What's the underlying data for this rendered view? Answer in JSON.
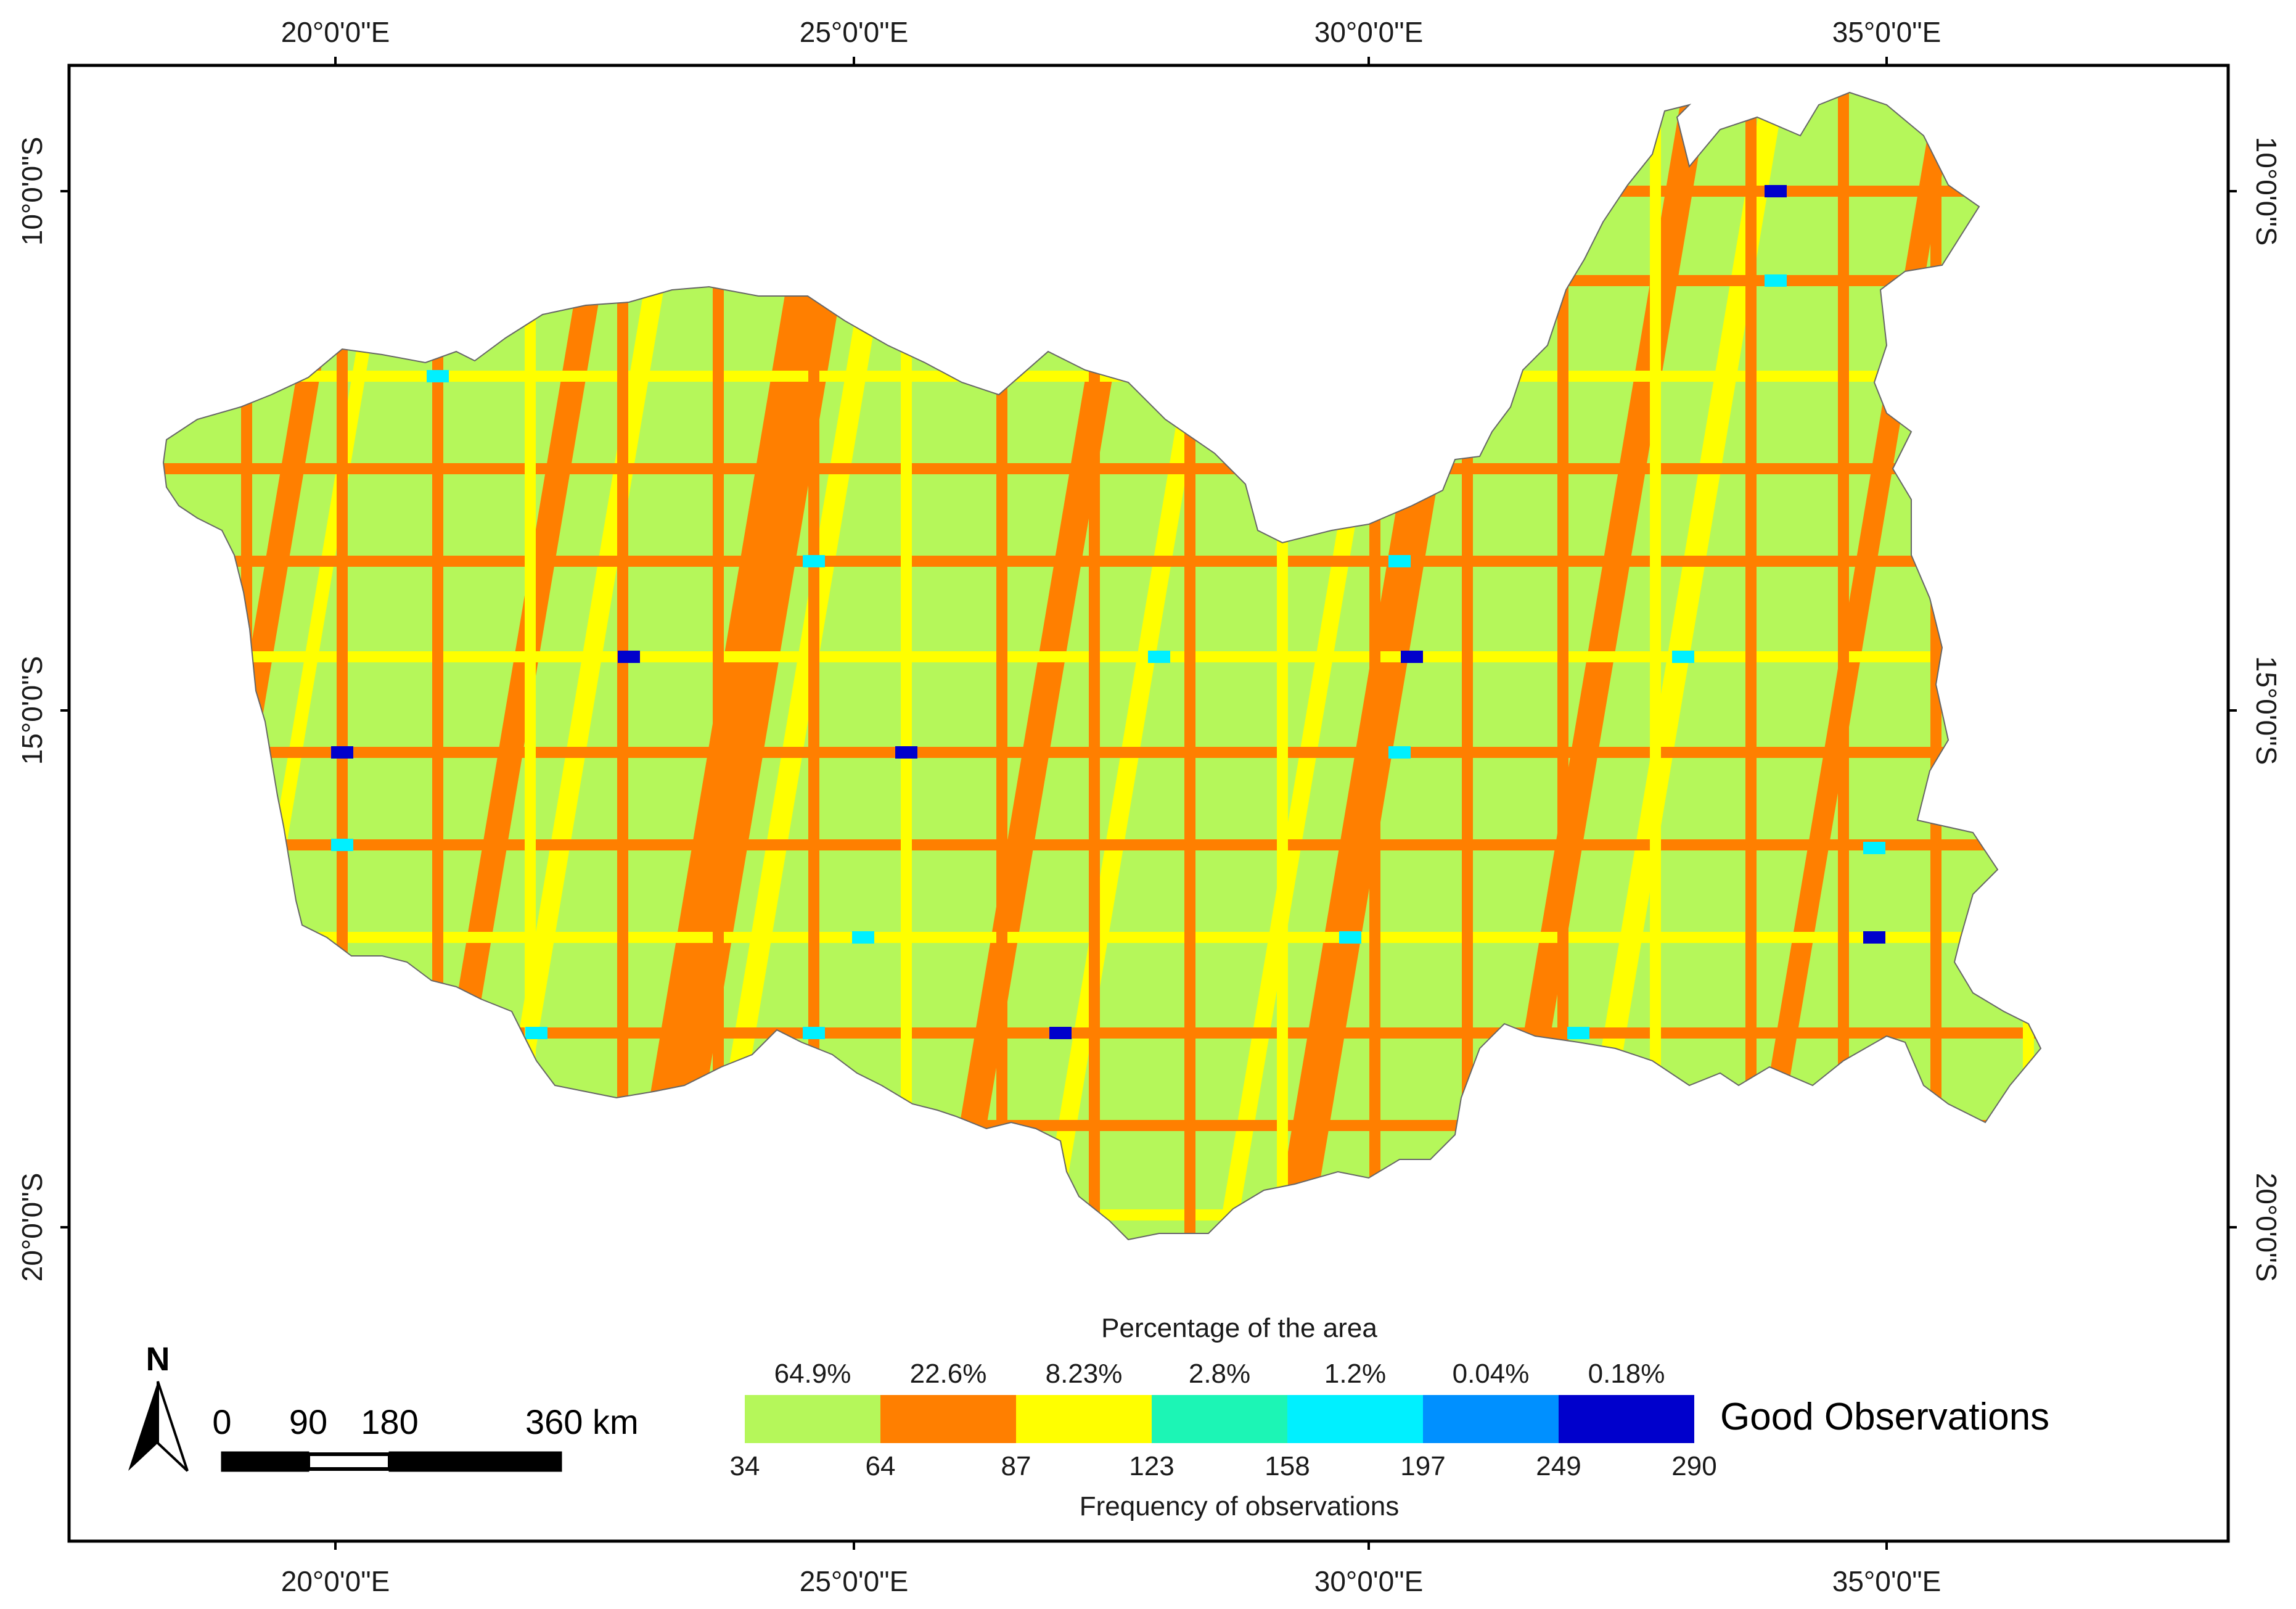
{
  "map": {
    "lon_ticks": [
      "20°0'0\"E",
      "25°0'0\"E",
      "30°0'0\"E",
      "35°0'0\"E"
    ],
    "lat_ticks": [
      "10°0'0\"S",
      "15°0'0\"S",
      "20°0'0\"S"
    ]
  },
  "legend": {
    "title": "Percentage of the area",
    "subtitle": "Frequency of observations",
    "name": "Good Observations",
    "classes": [
      {
        "pct": "64.9%",
        "color": "#b5f75a"
      },
      {
        "pct": "22.6%",
        "color": "#ff7f00"
      },
      {
        "pct": "8.23%",
        "color": "#ffff00"
      },
      {
        "pct": "2.8%",
        "color": "#1cf5b5"
      },
      {
        "pct": "1.2%",
        "color": "#00f0ff"
      },
      {
        "pct": "0.04%",
        "color": "#0090ff"
      },
      {
        "pct": "0.18%",
        "color": "#0000cc"
      }
    ],
    "breaks": [
      "34",
      "64",
      "87",
      "123",
      "158",
      "197",
      "249",
      "290"
    ]
  },
  "scale_bar": {
    "labels": [
      "0",
      "90",
      "180",
      "360 km"
    ]
  },
  "north_arrow": {
    "label": "N"
  },
  "colors": {
    "green": "#b5f75a",
    "orange": "#ff7f00",
    "yellow": "#ffff00",
    "teal": "#1cf5b5",
    "cyan": "#00f0ff",
    "blue": "#0000cc"
  }
}
